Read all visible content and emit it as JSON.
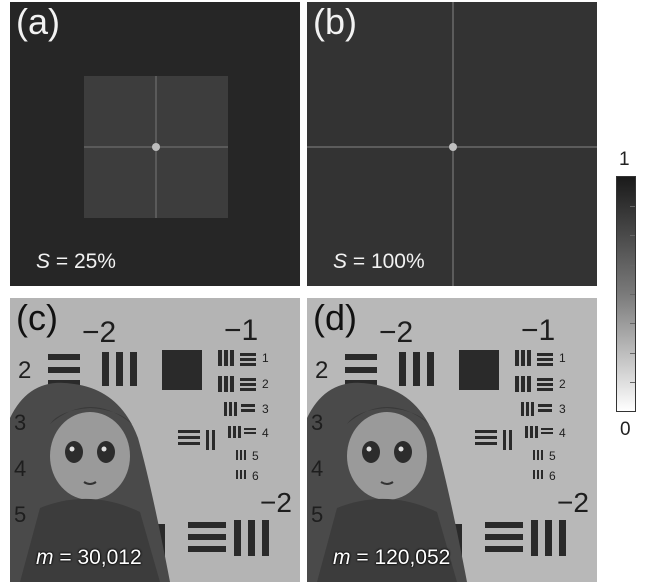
{
  "panels": [
    {
      "letter": "(a)",
      "symbol": "S",
      "eq": " = ",
      "value": "25%"
    },
    {
      "letter": "(b)",
      "symbol": "S",
      "eq": " = ",
      "value": "100%"
    },
    {
      "letter": "(c)",
      "symbol": "m",
      "eq": " = ",
      "value": "30,012"
    },
    {
      "letter": "(d)",
      "symbol": "m",
      "eq": " = ",
      "value": "120,052"
    }
  ],
  "target_labels": {
    "top_left_group": "−2",
    "top_right_group": "−1",
    "side_big": "2",
    "side_small": [
      "1",
      "2",
      "3",
      "4",
      "5",
      "6"
    ],
    "side_left": [
      "3",
      "4",
      "5"
    ],
    "bottom_group": "−2"
  },
  "colorbar": {
    "max": "1",
    "min": "0",
    "colors": [
      "#1a1a1a",
      "#ffffff"
    ]
  },
  "colors": {
    "spectrum_bg": "#262626",
    "image_bg": "#b4b4b4"
  }
}
